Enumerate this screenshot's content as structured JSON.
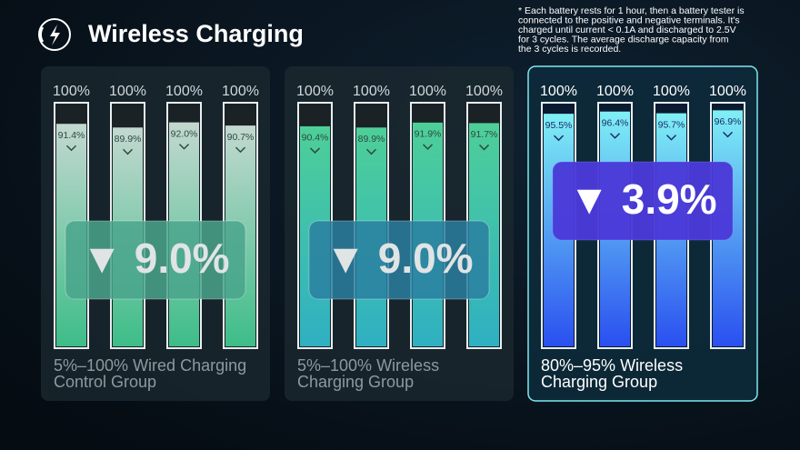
{
  "header": {
    "title": "Wireless Charging"
  },
  "footnote": [
    "* Each battery rests for 1 hour, then a battery tester is",
    "connected to the positive and negative terminals. It's",
    "charged until current < 0.1A and discharged to 2.5V",
    "for 3 cycles. The average discharge capacity from",
    "the 3 cycles is recorded."
  ],
  "chart_data": [
    {
      "type": "bar",
      "title": [
        "5%–100% Wired Charging",
        "Control Group"
      ],
      "capacity": [
        100,
        100,
        100,
        100
      ],
      "capacity_labels": [
        "100%",
        "100%",
        "100%",
        "100%"
      ],
      "values": [
        91.4,
        89.9,
        92.0,
        90.7
      ],
      "value_labels": [
        "91.4%",
        "89.9%",
        "92.0%",
        "90.7%"
      ],
      "ylim": [
        0,
        100
      ],
      "annotation": "▼ 9.0%",
      "colors": [
        "#c3d8d0",
        "#3dbd88"
      ],
      "badge_color": "#4aa58c",
      "highlight": false
    },
    {
      "type": "bar",
      "title": [
        "5%–100% Wireless",
        "Charging Group"
      ],
      "capacity": [
        100,
        100,
        100,
        100
      ],
      "capacity_labels": [
        "100%",
        "100%",
        "100%",
        "100%"
      ],
      "values": [
        90.4,
        89.9,
        91.9,
        91.7
      ],
      "value_labels": [
        "90.4%",
        "89.9%",
        "91.9%",
        "91.7%"
      ],
      "ylim": [
        0,
        100
      ],
      "annotation": "▼ 9.0%",
      "colors": [
        "#4ecf98",
        "#2fb0c2"
      ],
      "badge_color": "#2a7fa0",
      "highlight": false
    },
    {
      "type": "bar",
      "title": [
        "80%–95% Wireless",
        "Charging Group"
      ],
      "capacity": [
        100,
        100,
        100,
        100
      ],
      "capacity_labels": [
        "100%",
        "100%",
        "100%",
        "100%"
      ],
      "values": [
        95.5,
        96.4,
        95.7,
        96.9
      ],
      "value_labels": [
        "95.5%",
        "96.4%",
        "95.7%",
        "96.9%"
      ],
      "ylim": [
        0,
        100
      ],
      "annotation": "▼ 3.9%",
      "colors": [
        "#7ff0f4",
        "#2a4ff0"
      ],
      "badge_color": "#4a3ad8",
      "highlight": true
    }
  ]
}
